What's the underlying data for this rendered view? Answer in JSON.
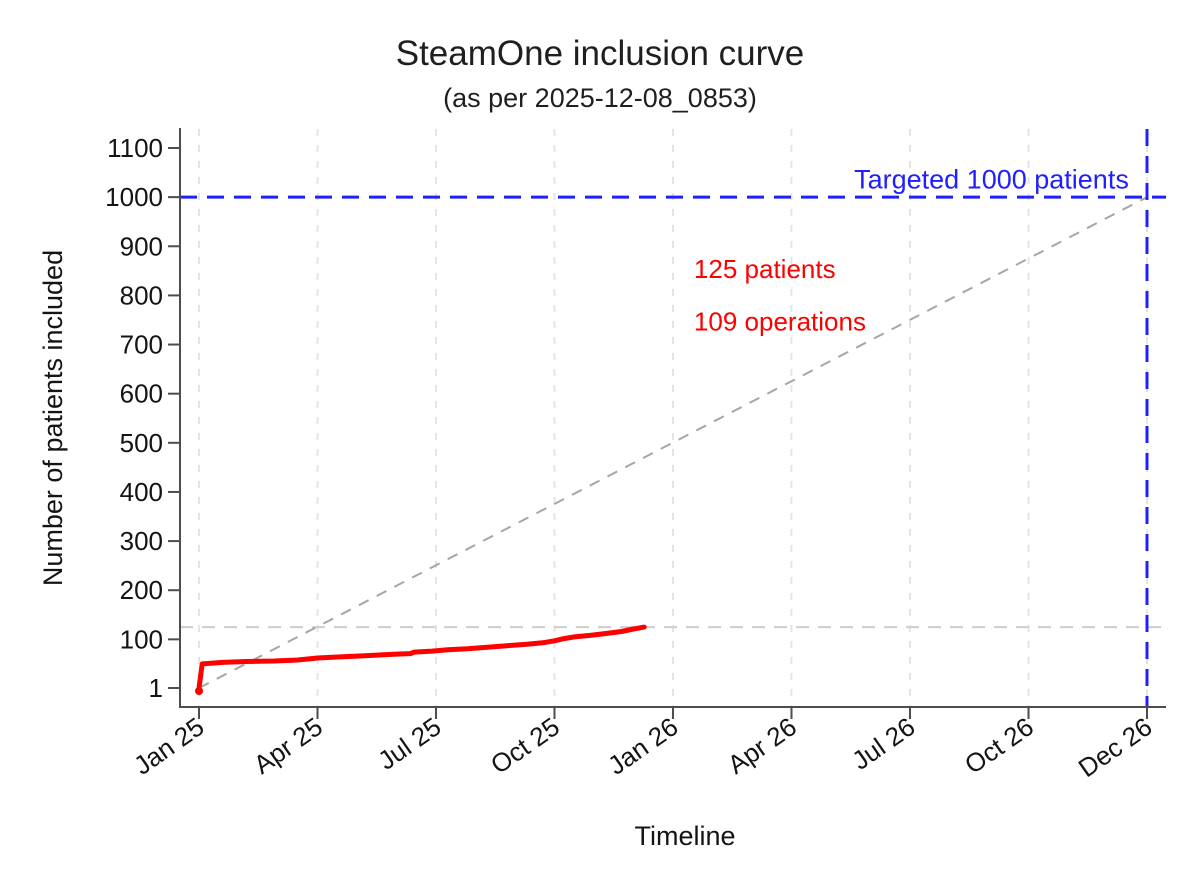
{
  "chart_data": {
    "type": "line",
    "title": "SteamOne inclusion curve",
    "subtitle": "(as per 2025-12-08_0853)",
    "xlabel": "Timeline",
    "ylabel": "Number of patients included",
    "ylim": [
      1,
      1100
    ],
    "x_axis_months": [
      0,
      24
    ],
    "axis_color": "#4d4d4d",
    "text_color": "#141414",
    "grid": {
      "vertical_at_x_ticks": true,
      "color": "#e4e4e4",
      "dash": "7 9",
      "width": 2
    },
    "x_ticks": [
      {
        "label": "Jan 25",
        "month": 0
      },
      {
        "label": "Apr 25",
        "month": 3
      },
      {
        "label": "Jul 25",
        "month": 6
      },
      {
        "label": "Oct 25",
        "month": 9
      },
      {
        "label": "Jan 26",
        "month": 12
      },
      {
        "label": "Apr 26",
        "month": 15
      },
      {
        "label": "Jul 26",
        "month": 18
      },
      {
        "label": "Oct 26",
        "month": 21
      },
      {
        "label": "Dec 26",
        "month": 24
      }
    ],
    "y_ticks": [
      {
        "label": "1",
        "value": 1
      },
      {
        "label": "100",
        "value": 100
      },
      {
        "label": "200",
        "value": 200
      },
      {
        "label": "300",
        "value": 300
      },
      {
        "label": "400",
        "value": 400
      },
      {
        "label": "500",
        "value": 500
      },
      {
        "label": "600",
        "value": 600
      },
      {
        "label": "700",
        "value": 700
      },
      {
        "label": "800",
        "value": 800
      },
      {
        "label": "900",
        "value": 900
      },
      {
        "label": "1000",
        "value": 1000
      },
      {
        "label": "1100",
        "value": 1100
      }
    ],
    "series": [
      {
        "name": "cumulative-inclusions",
        "color": "#ff0000",
        "stroke_width": 5,
        "start_marker": true,
        "points": [
          [
            0,
            1
          ],
          [
            0.08,
            50
          ],
          [
            0.6,
            53
          ],
          [
            1.2,
            55
          ],
          [
            1.9,
            56
          ],
          [
            2.5,
            58
          ],
          [
            3.0,
            62
          ],
          [
            3.5,
            64
          ],
          [
            4.0,
            66
          ],
          [
            4.5,
            68
          ],
          [
            5.0,
            70
          ],
          [
            5.35,
            71
          ],
          [
            5.45,
            74
          ],
          [
            5.9,
            76
          ],
          [
            6.3,
            79
          ],
          [
            6.8,
            81
          ],
          [
            7.3,
            84
          ],
          [
            7.8,
            87
          ],
          [
            8.3,
            90
          ],
          [
            8.7,
            93
          ],
          [
            9.0,
            97
          ],
          [
            9.2,
            101
          ],
          [
            9.5,
            105
          ],
          [
            9.9,
            108
          ],
          [
            10.3,
            112
          ],
          [
            10.7,
            116
          ],
          [
            11.0,
            121
          ],
          [
            11.27,
            125
          ]
        ]
      }
    ],
    "reference_lines": [
      {
        "name": "current-count-line",
        "kind": "h",
        "value": 125,
        "color": "#cdcdcd",
        "dash": "13 9",
        "width": 2
      },
      {
        "name": "projection-diagonal",
        "kind": "segment",
        "from": [
          0,
          1
        ],
        "to": [
          24,
          1000
        ],
        "color": "#a6a6a6",
        "dash": "11 9",
        "width": 2
      },
      {
        "name": "target-horizontal-line",
        "kind": "h",
        "value": 1000,
        "color": "#2020ff",
        "dash": "17 10",
        "width": 3
      },
      {
        "name": "target-vertical-line",
        "kind": "v",
        "month": 24,
        "color": "#2020ff",
        "dash": "17 10",
        "width": 3
      }
    ],
    "annotations": [
      {
        "name": "target-label",
        "text": "Targeted 1000 patients",
        "color": "#2020ff",
        "month": 23.54,
        "value": 1018,
        "anchor": "end",
        "font": 27
      },
      {
        "name": "patients-count-label",
        "text": "125 patients",
        "color": "#ff0000",
        "month": 12.53,
        "value": 835,
        "anchor": "start",
        "font": 26
      },
      {
        "name": "operations-count-label",
        "text": "109 operations",
        "color": "#ff0000",
        "month": 12.53,
        "value": 729,
        "anchor": "start",
        "font": 26
      }
    ]
  }
}
